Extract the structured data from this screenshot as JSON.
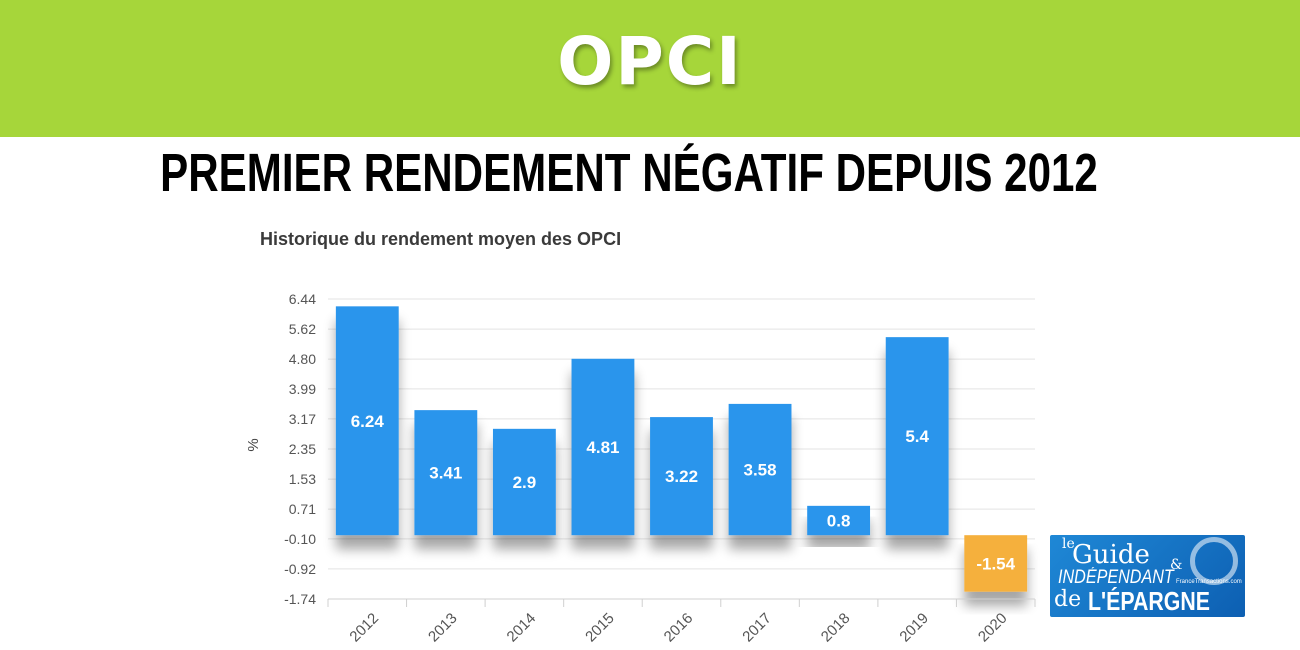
{
  "banner": {
    "title": "OPCI",
    "color": "#a6d63a"
  },
  "headline": "PREMIER RENDEMENT NÉGATIF DEPUIS 2012",
  "chart_data": {
    "type": "bar",
    "title": "Historique du rendement moyen des OPCI",
    "xlabel": "",
    "ylabel": "%",
    "categories": [
      "2012",
      "2013",
      "2014",
      "2015",
      "2016",
      "2017",
      "2018",
      "2019",
      "2020"
    ],
    "values": [
      6.24,
      3.41,
      2.9,
      4.81,
      3.22,
      3.58,
      0.8,
      5.4,
      -1.54
    ],
    "data_labels": [
      "6.24",
      "3.41",
      "2.9",
      "4.81",
      "3.22",
      "3.58",
      "0.8",
      "5.4",
      "-1.54"
    ],
    "yticks": [
      "6.44",
      "5.62",
      "4.80",
      "3.99",
      "3.17",
      "2.35",
      "1.53",
      "0.71",
      "-0.10",
      "-0.92",
      "-1.74"
    ],
    "ylim": [
      -1.74,
      6.44
    ],
    "grid": true,
    "positive_color": "#2b95ec",
    "negative_color": "#f5b03c"
  },
  "logo": {
    "line1": "le",
    "line2": "Guide",
    "line3": "INDÉPENDANT",
    "line4": "de",
    "line5": "L'ÉPARGNE",
    "line6": "FranceTransactions.com",
    "amp": "&"
  }
}
